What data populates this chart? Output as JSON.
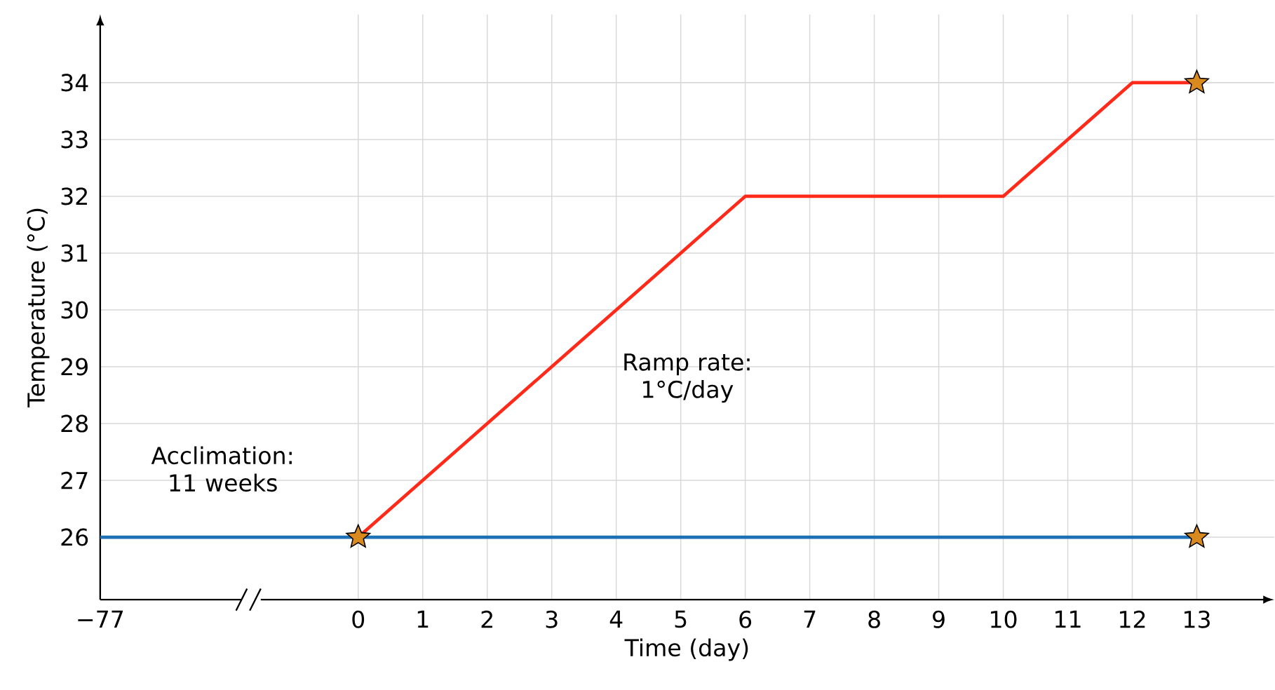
{
  "chart_data": {
    "type": "line",
    "xlabel": "Time (day)",
    "ylabel": "Temperature (°C)",
    "categories": [
      "−77",
      null,
      null,
      null,
      "0",
      "1",
      "2",
      "3",
      "4",
      "5",
      "6",
      "7",
      "8",
      "9",
      "10",
      "11",
      "12",
      "13"
    ],
    "series": [
      {
        "color": "#1f6fb5",
        "marker": "none",
        "values": [
          26,
          26,
          26,
          26,
          26,
          26,
          26,
          26,
          26,
          26,
          26,
          26,
          26,
          26,
          26,
          26,
          26,
          26
        ]
      },
      {
        "color": "#ff2a1a",
        "marker": "none",
        "values": [
          null,
          null,
          null,
          null,
          26,
          27,
          28,
          29,
          30,
          31,
          32,
          32,
          32,
          32,
          32,
          33,
          34,
          34
        ]
      },
      {
        "type": "scatter",
        "color": "#d98a1f",
        "marker": "star",
        "values": [
          null,
          null,
          null,
          null,
          26,
          null,
          null,
          null,
          null,
          null,
          null,
          null,
          null,
          null,
          null,
          null,
          null,
          34
        ]
      },
      {
        "type": "scatter",
        "color": "#d98a1f",
        "marker": "star",
        "values": [
          null,
          null,
          null,
          null,
          null,
          null,
          null,
          null,
          null,
          null,
          null,
          null,
          null,
          null,
          null,
          null,
          null,
          26
        ]
      }
    ],
    "ylim": [
      24.9,
      35.2
    ],
    "yticks": [
      26,
      27,
      28,
      29,
      30,
      31,
      32,
      33,
      34
    ],
    "grid": true,
    "annotations": [
      "Acclimation: 11 weeks",
      "Ramp rate: 1°C/day"
    ]
  }
}
